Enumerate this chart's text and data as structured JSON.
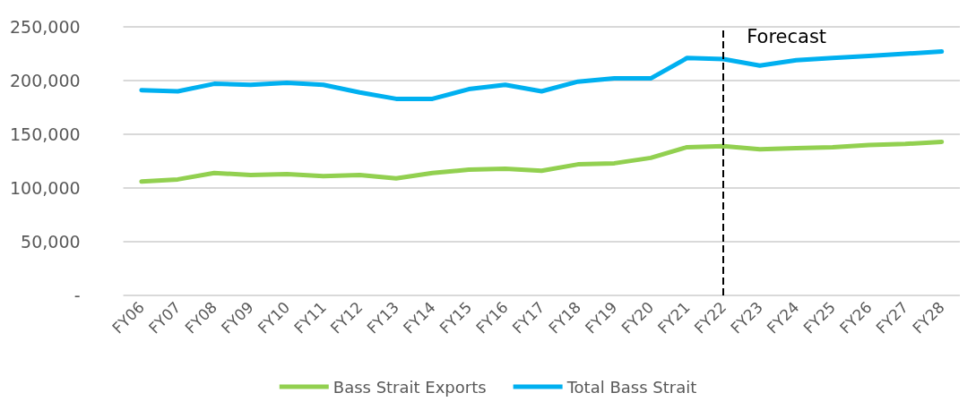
{
  "chart_data": {
    "type": "line",
    "categories": [
      "FY06",
      "FY07",
      "FY08",
      "FY09",
      "FY10",
      "FY11",
      "FY12",
      "FY13",
      "FY14",
      "FY15",
      "FY16",
      "FY17",
      "FY18",
      "FY19",
      "FY20",
      "FY21",
      "FY22",
      "FY23",
      "FY24",
      "FY25",
      "FY26",
      "FY27",
      "FY28"
    ],
    "series": [
      {
        "name": "Bass Strait Exports",
        "color": "#92d050",
        "values": [
          106000,
          108000,
          114000,
          112000,
          113000,
          111000,
          112000,
          109000,
          114000,
          117000,
          118000,
          116000,
          122000,
          123000,
          128000,
          138000,
          139000,
          136000,
          137000,
          138000,
          140000,
          141000,
          143000
        ]
      },
      {
        "name": "Total Bass Strait",
        "color": "#00b0f0",
        "values": [
          191000,
          190000,
          197000,
          196000,
          198000,
          196000,
          189000,
          183000,
          183000,
          192000,
          196000,
          190000,
          199000,
          202000,
          202000,
          221000,
          220000,
          214000,
          219000,
          221000,
          223000,
          225000,
          227000
        ]
      }
    ],
    "ylim": [
      0,
      250000
    ],
    "yticks": [
      {
        "value": 0,
        "label": "-"
      },
      {
        "value": 50000,
        "label": "50,000"
      },
      {
        "value": 100000,
        "label": "100,000"
      },
      {
        "value": 150000,
        "label": "150,000"
      },
      {
        "value": 200000,
        "label": "200,000"
      },
      {
        "value": 250000,
        "label": "250,000"
      }
    ],
    "grid": "y",
    "legend": "bottom",
    "marker": "none",
    "line_style": "solid",
    "ref_lines": [
      {
        "axis": "x",
        "value": "FY22",
        "label": "Forecast",
        "color": "#000000",
        "line_style": "dashed"
      }
    ]
  }
}
